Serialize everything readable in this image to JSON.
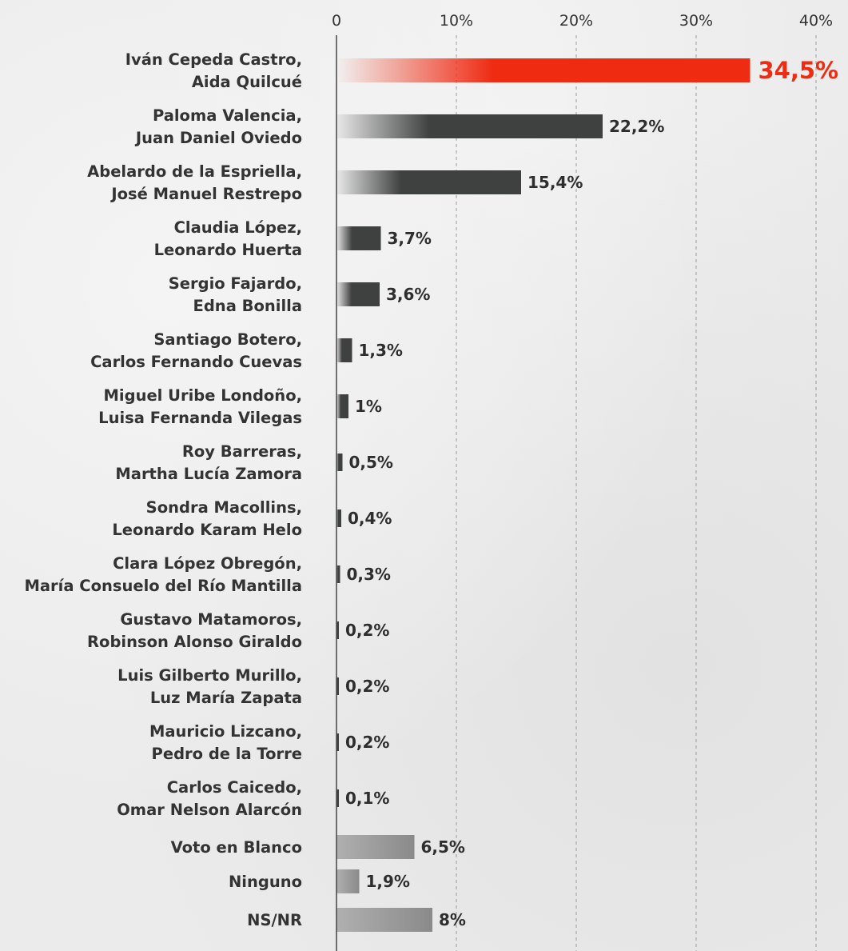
{
  "chart_data": {
    "type": "bar",
    "orientation": "horizontal",
    "title": "",
    "xlabel": "",
    "ylabel": "",
    "xlim": [
      0,
      40
    ],
    "ticks": [
      {
        "value": 0,
        "label": "0"
      },
      {
        "value": 10,
        "label": "10%"
      },
      {
        "value": 20,
        "label": "20%"
      },
      {
        "value": 30,
        "label": "30%"
      },
      {
        "value": 40,
        "label": "40%"
      }
    ],
    "grid": "vertical dashed",
    "categories": [
      [
        "Iván Cepeda Castro,",
        "Aida Quilcué"
      ],
      [
        "Paloma Valencia,",
        "Juan Daniel Oviedo"
      ],
      [
        "Abelardo de la Espriella,",
        "José Manuel Restrepo"
      ],
      [
        "Claudia López,",
        "Leonardo Huerta"
      ],
      [
        "Sergio Fajardo,",
        "Edna Bonilla"
      ],
      [
        "Santiago Botero,",
        "Carlos Fernando Cuevas"
      ],
      [
        "Miguel Uribe Londoño,",
        "Luisa Fernanda Vilegas"
      ],
      [
        "Roy Barreras,",
        "Martha Lucía Zamora"
      ],
      [
        "Sondra Macollins,",
        "Leonardo Karam Helo"
      ],
      [
        "Clara López Obregón,",
        "María Consuelo del Río Mantilla"
      ],
      [
        "Gustavo Matamoros,",
        "Robinson Alonso Giraldo"
      ],
      [
        "Luis Gilberto Murillo,",
        "Luz María Zapata"
      ],
      [
        "Mauricio Lizcano,",
        "Pedro de la Torre"
      ],
      [
        "Carlos Caicedo,",
        "Omar Nelson Alarcón"
      ],
      [
        "Voto en Blanco"
      ],
      [
        "Ninguno"
      ],
      [
        "NS/NR"
      ]
    ],
    "values": [
      34.5,
      22.2,
      15.4,
      3.7,
      3.6,
      1.3,
      1,
      0.5,
      0.4,
      0.3,
      0.2,
      0.2,
      0.2,
      0.1,
      6.5,
      1.9,
      8
    ],
    "value_labels": [
      "34,5%",
      "22,2%",
      "15,4%",
      "3,7%",
      "3,6%",
      "1,3%",
      "1%",
      "0,5%",
      "0,4%",
      "0,3%",
      "0,2%",
      "0,2%",
      "0,2%",
      "0,1%",
      "6,5%",
      "1,9%",
      "8%"
    ],
    "bar_groups": [
      "highlight",
      "candidate",
      "candidate",
      "candidate",
      "candidate",
      "candidate",
      "candidate",
      "candidate",
      "candidate",
      "candidate",
      "candidate",
      "candidate",
      "candidate",
      "candidate",
      "other",
      "other",
      "other"
    ],
    "colors": {
      "highlight": "#ef2b12",
      "candidate": "#3f4040",
      "other": "#8a8a8a",
      "axis": "#444444",
      "grid": "#9a9a9a"
    }
  }
}
